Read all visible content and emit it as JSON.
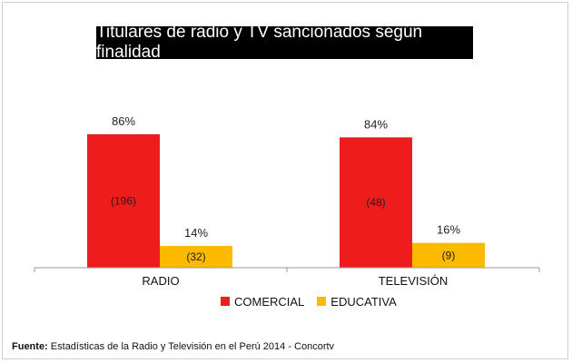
{
  "title": "Titulares de radio y TV sancionados según finalidad",
  "colors": {
    "comercial": "#ee1c1c",
    "educativa": "#fbb900"
  },
  "source": {
    "label": "Fuente:",
    "text": "Estadísticas de la Radio y Televisión en el Perú 2014 - Concortv"
  },
  "chart_data": {
    "type": "bar",
    "title": "Titulares de radio y TV sancionados según finalidad",
    "categories": [
      "RADIO",
      "TELEVISIÓN"
    ],
    "series": [
      {
        "name": "COMERCIAL",
        "values": [
          86,
          84
        ],
        "labels": [
          "86%",
          "84%"
        ],
        "counts": [
          "(196)",
          "(48)"
        ]
      },
      {
        "name": "EDUCATIVA",
        "values": [
          14,
          16
        ],
        "labels": [
          "14%",
          "16%"
        ],
        "counts": [
          "(32)",
          "(9)"
        ]
      }
    ],
    "unit": "%",
    "ylim": [
      0,
      100
    ],
    "grid": false,
    "legend_position": "bottom"
  }
}
